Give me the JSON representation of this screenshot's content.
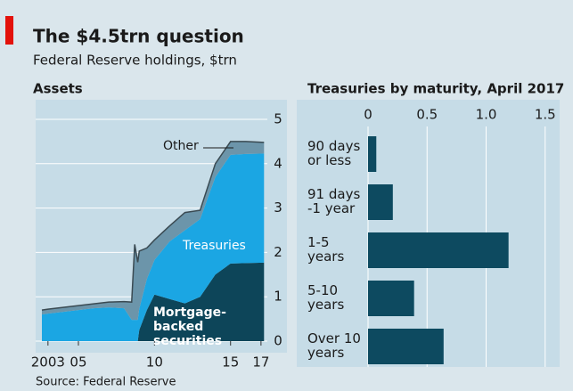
{
  "title": "The $4.5trn question",
  "subtitle": "Federal Reserve holdings, $trn",
  "source": "Source: Federal Reserve",
  "chart_data": [
    {
      "type": "area",
      "title": "Assets",
      "stacked": true,
      "x": [
        2002.6,
        2003,
        2004,
        2005,
        2006,
        2007,
        2008,
        2008.5,
        2008.7,
        2008.9,
        2009,
        2009.5,
        2010,
        2011,
        2012,
        2013,
        2014,
        2015,
        2016,
        2017.2
      ],
      "series": [
        {
          "name": "Mortgage-backed securities",
          "color": "#0d4559",
          "values": [
            0,
            0,
            0,
            0,
            0,
            0,
            0,
            0,
            0,
            0,
            0.25,
            0.7,
            1.05,
            0.95,
            0.85,
            1.0,
            1.5,
            1.75,
            1.76,
            1.77
          ]
        },
        {
          "name": "Treasuries",
          "color": "#1ba6e3",
          "values": [
            0.6,
            0.62,
            0.66,
            0.7,
            0.74,
            0.76,
            0.74,
            0.48,
            0.48,
            0.48,
            0.48,
            0.7,
            0.78,
            1.3,
            1.65,
            1.75,
            2.2,
            2.45,
            2.46,
            2.46
          ]
        },
        {
          "name": "Other",
          "color": "#6c95aa",
          "values": [
            0.1,
            0.1,
            0.1,
            0.1,
            0.1,
            0.12,
            0.15,
            0.4,
            1.7,
            1.3,
            1.3,
            0.7,
            0.45,
            0.35,
            0.4,
            0.2,
            0.3,
            0.3,
            0.28,
            0.25
          ]
        }
      ],
      "xlim": [
        2002.6,
        2017.3
      ],
      "xticks": [
        {
          "value": 2003,
          "label": "2003"
        },
        {
          "value": 2005,
          "label": "05"
        },
        {
          "value": 2010,
          "label": "10"
        },
        {
          "value": 2015,
          "label": "15"
        },
        {
          "value": 2017,
          "label": "17"
        }
      ],
      "ylim": [
        0,
        5
      ],
      "yticks": [
        0,
        1,
        2,
        3,
        4,
        5
      ],
      "grid": true
    },
    {
      "type": "barh",
      "title": "Treasuries by maturity, April 2017",
      "categories": [
        "90 days or less",
        "91 days -1 year",
        "1-5 years",
        "5-10 years",
        "Over 10 years"
      ],
      "values": [
        0.07,
        0.21,
        1.19,
        0.39,
        0.64
      ],
      "color": "#0d4a60",
      "xlim": [
        0,
        1.6
      ],
      "xticks": [
        0,
        0.5,
        {
          "value": 1,
          "label": "1.0"
        },
        1.5
      ],
      "grid": true
    }
  ]
}
